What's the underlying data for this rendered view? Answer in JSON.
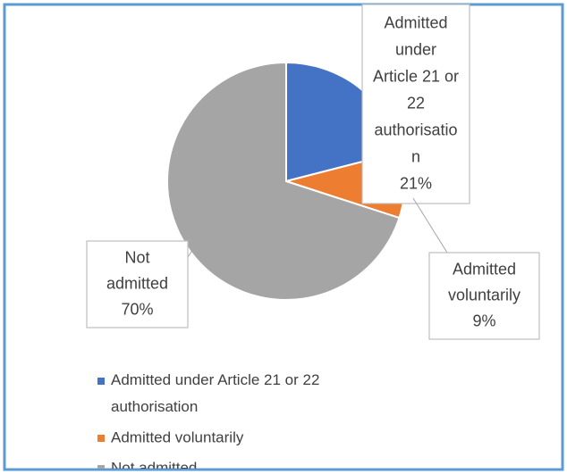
{
  "chart_data": {
    "type": "pie",
    "categories": [
      "Admitted under Article 21 or 22 authorisation",
      "Admitted voluntarily",
      "Not admitted"
    ],
    "values": [
      21,
      9,
      70
    ],
    "value_labels": [
      "21%",
      "9%",
      "70%"
    ],
    "colors": [
      "#4472c4",
      "#ed7d31",
      "#a5a5a5"
    ],
    "legend": "bottom"
  }
}
